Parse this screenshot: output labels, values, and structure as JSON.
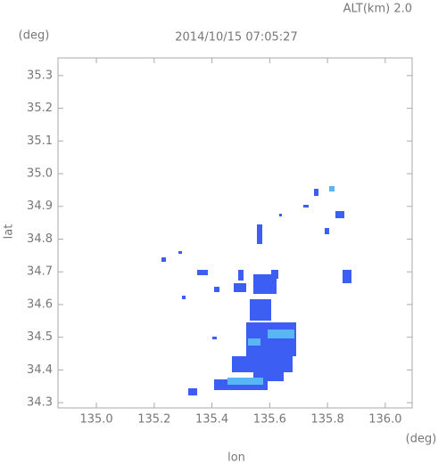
{
  "chart_data": {
    "type": "map",
    "title": "2014/10/15 07:05:27",
    "annotation": "ALT(km) 2.0",
    "xlabel": "lon",
    "ylabel": "lat",
    "xunit": "(deg)",
    "yunit": "(deg)",
    "xlim": [
      134.867,
      136.093
    ],
    "ylim": [
      34.284,
      35.354
    ],
    "xticks": [
      {
        "value": 135.0,
        "label": "135.0"
      },
      135.2,
      135.4,
      135.6,
      135.8,
      {
        "value": 136.0,
        "label": "136.0"
      }
    ],
    "yticks": [
      34.3,
      34.4,
      34.5,
      34.6,
      34.7,
      34.8,
      34.9,
      {
        "value": 35.0,
        "label": "35.0"
      },
      35.1,
      35.2,
      35.3
    ]
  }
}
